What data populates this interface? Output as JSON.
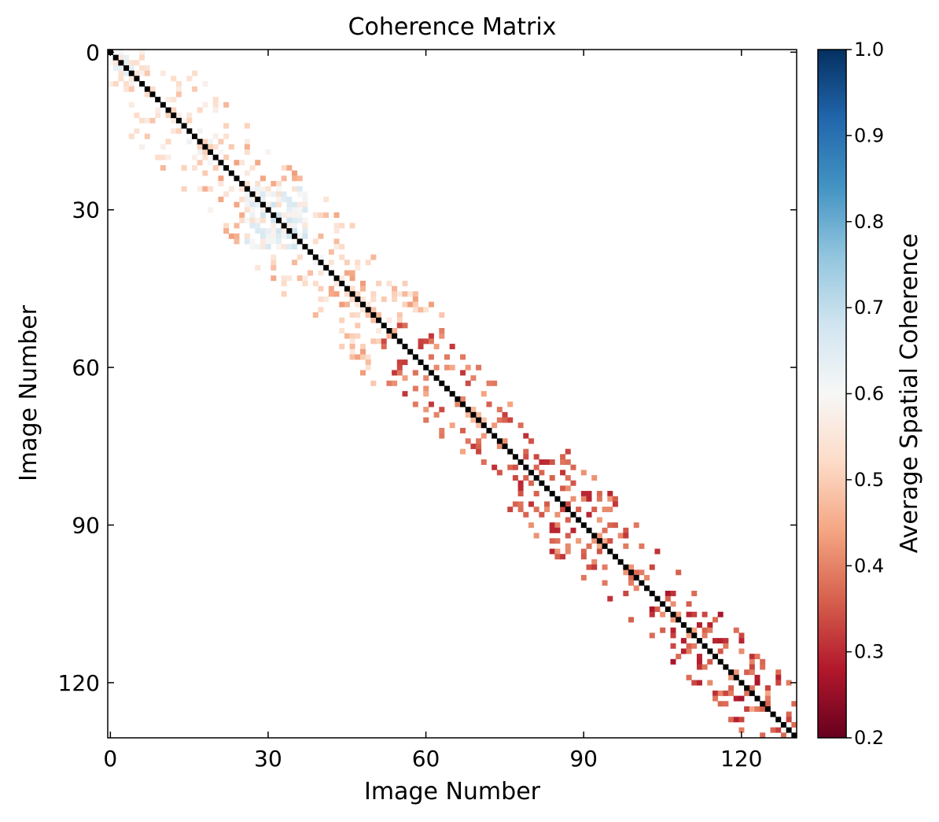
{
  "chart_data": {
    "type": "heatmap",
    "title": "Coherence Matrix",
    "xlabel": "Image Number",
    "ylabel": "Image Number",
    "colorbar_label": "Average Spatial Coherence",
    "n": 131,
    "xlim": [
      0,
      130
    ],
    "ylim": [
      0,
      130
    ],
    "x_ticks": [
      "0",
      "30",
      "60",
      "90",
      "120"
    ],
    "y_ticks": [
      "0",
      "30",
      "60",
      "90",
      "120"
    ],
    "colorbar_range": [
      0.2,
      1.0
    ],
    "colorbar_ticks": [
      "0.2",
      "0.3",
      "0.4",
      "0.5",
      "0.6",
      "0.7",
      "0.8",
      "0.9",
      "1.0"
    ],
    "colormap": "RdBu",
    "diagonal_value": 1.0,
    "diagonal_color": "#000000",
    "threshold_note_value": 0.7,
    "bands": [
      {
        "from": 0,
        "to": 20,
        "value": 0.52,
        "density": 0.32,
        "width": 12
      },
      {
        "from": 20,
        "to": 52,
        "value": 0.5,
        "density": 0.3,
        "width": 13
      },
      {
        "from": 52,
        "to": 72,
        "value": 0.38,
        "density": 0.28,
        "width": 10
      },
      {
        "from": 72,
        "to": 100,
        "value": 0.36,
        "density": 0.26,
        "width": 11
      },
      {
        "from": 100,
        "to": 131,
        "value": 0.34,
        "density": 0.3,
        "width": 9
      }
    ],
    "dense_blocks": [
      {
        "from": 0,
        "to": 6,
        "value": 0.55
      },
      {
        "from": 26,
        "to": 38,
        "value": 0.6
      },
      {
        "from": 122,
        "to": 126,
        "value": 0.38
      }
    ]
  }
}
